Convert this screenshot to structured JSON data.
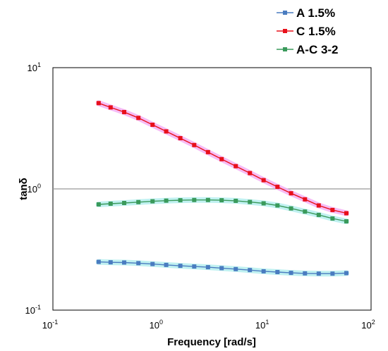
{
  "chart_data": {
    "type": "line",
    "title": "",
    "xlabel": "Frequency [rad/s]",
    "ylabel": "tanδ",
    "xscale": "log",
    "yscale": "log",
    "xlim": [
      0.1,
      100
    ],
    "ylim": [
      0.1,
      10
    ],
    "x_ticks": [
      {
        "value": 0.1,
        "base": "10",
        "exp": "-1"
      },
      {
        "value": 1,
        "base": "10",
        "exp": "0"
      },
      {
        "value": 10,
        "base": "10",
        "exp": "1"
      },
      {
        "value": 100,
        "base": "10",
        "exp": "2"
      }
    ],
    "y_ticks": [
      {
        "value": 0.1,
        "base": "10",
        "exp": "-1"
      },
      {
        "value": 1,
        "base": "10",
        "exp": "0"
      },
      {
        "value": 10,
        "base": "10",
        "exp": "1"
      }
    ],
    "reference_line": {
      "y": 1,
      "color": "#999999"
    },
    "legend_position": "top-right",
    "x": [
      0.27,
      0.35,
      0.47,
      0.64,
      0.87,
      1.17,
      1.59,
      2.15,
      2.9,
      3.9,
      5.3,
      7.2,
      9.7,
      13.1,
      17.6,
      23.8,
      32.1,
      43.3,
      58.5
    ],
    "series": [
      {
        "name": "A 1.5%",
        "color": "#4a7cc0",
        "halo": "#b5efef",
        "values": [
          0.25,
          0.248,
          0.247,
          0.244,
          0.24,
          0.236,
          0.232,
          0.229,
          0.226,
          0.222,
          0.218,
          0.214,
          0.209,
          0.206,
          0.203,
          0.201,
          0.2,
          0.2,
          0.202
        ]
      },
      {
        "name": "C 1.5%",
        "color": "#e8101a",
        "halo": "#f5b0f5",
        "values": [
          5.1,
          4.7,
          4.3,
          3.85,
          3.38,
          2.98,
          2.62,
          2.3,
          2.01,
          1.76,
          1.54,
          1.35,
          1.18,
          1.04,
          0.92,
          0.82,
          0.73,
          0.67,
          0.63
        ]
      },
      {
        "name": "A-C 3-2",
        "color": "#3a9a5b",
        "halo": "#b5efef",
        "values": [
          0.745,
          0.755,
          0.765,
          0.778,
          0.79,
          0.8,
          0.806,
          0.81,
          0.81,
          0.806,
          0.797,
          0.78,
          0.76,
          0.73,
          0.69,
          0.65,
          0.61,
          0.57,
          0.54
        ]
      }
    ]
  }
}
